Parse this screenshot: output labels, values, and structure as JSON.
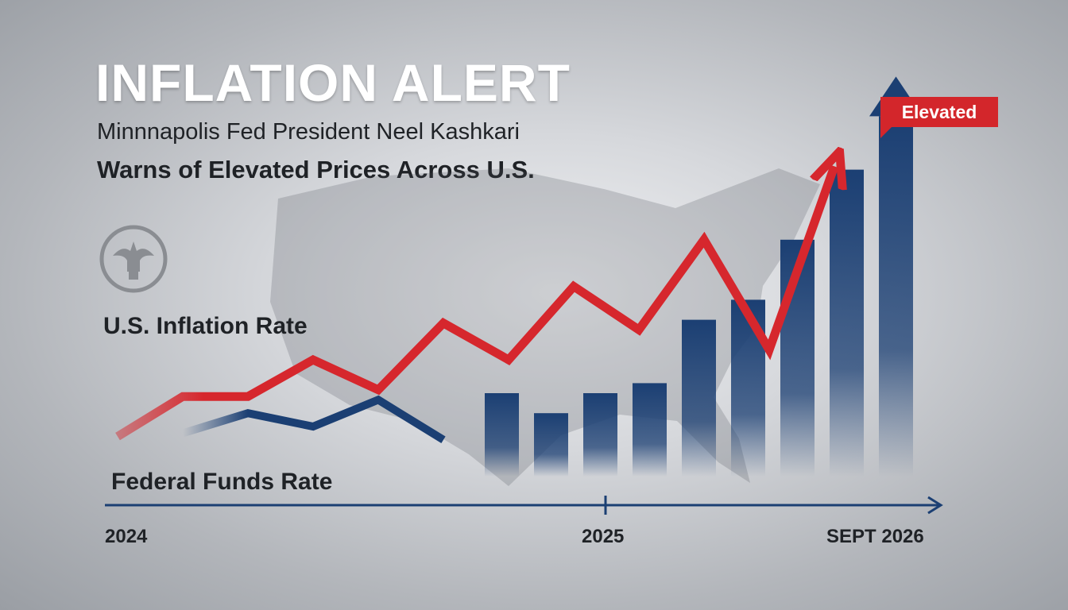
{
  "chart_data": {
    "type": "line",
    "title": "INFLATION ALERT",
    "subtitle_line1": "Minnnapolis Fed President Neel Kashkari",
    "subtitle_line2": "Warns of Elevated Prices Across U.S.",
    "x_tick_labels": [
      "2024",
      "2025",
      "SEPT 2026"
    ],
    "series": [
      {
        "name": "U.S. Inflation Rate",
        "color": "#d6272d",
        "x": [
          0,
          1,
          2,
          3,
          4,
          5,
          6,
          7,
          8,
          9,
          10,
          11
        ],
        "values": [
          1.2,
          2.4,
          2.4,
          3.5,
          2.6,
          4.6,
          3.5,
          5.7,
          4.4,
          7.1,
          3.8,
          9.3
        ]
      },
      {
        "name": "Federal Funds Rate",
        "color": "#1b3f73",
        "x": [
          1,
          2,
          3,
          4,
          5
        ],
        "values": [
          1.3,
          1.9,
          1.5,
          2.3,
          1.1
        ]
      },
      {
        "type": "bar",
        "color": "#1b3f73",
        "values": [
          2.5,
          1.9,
          2.5,
          2.8,
          4.7,
          5.3,
          7.1,
          9.2,
          10.8
        ]
      }
    ],
    "annotation": "Elevated",
    "legend": "none",
    "grid": false
  },
  "icons": {
    "seal": "federal-reserve-seal-icon"
  }
}
